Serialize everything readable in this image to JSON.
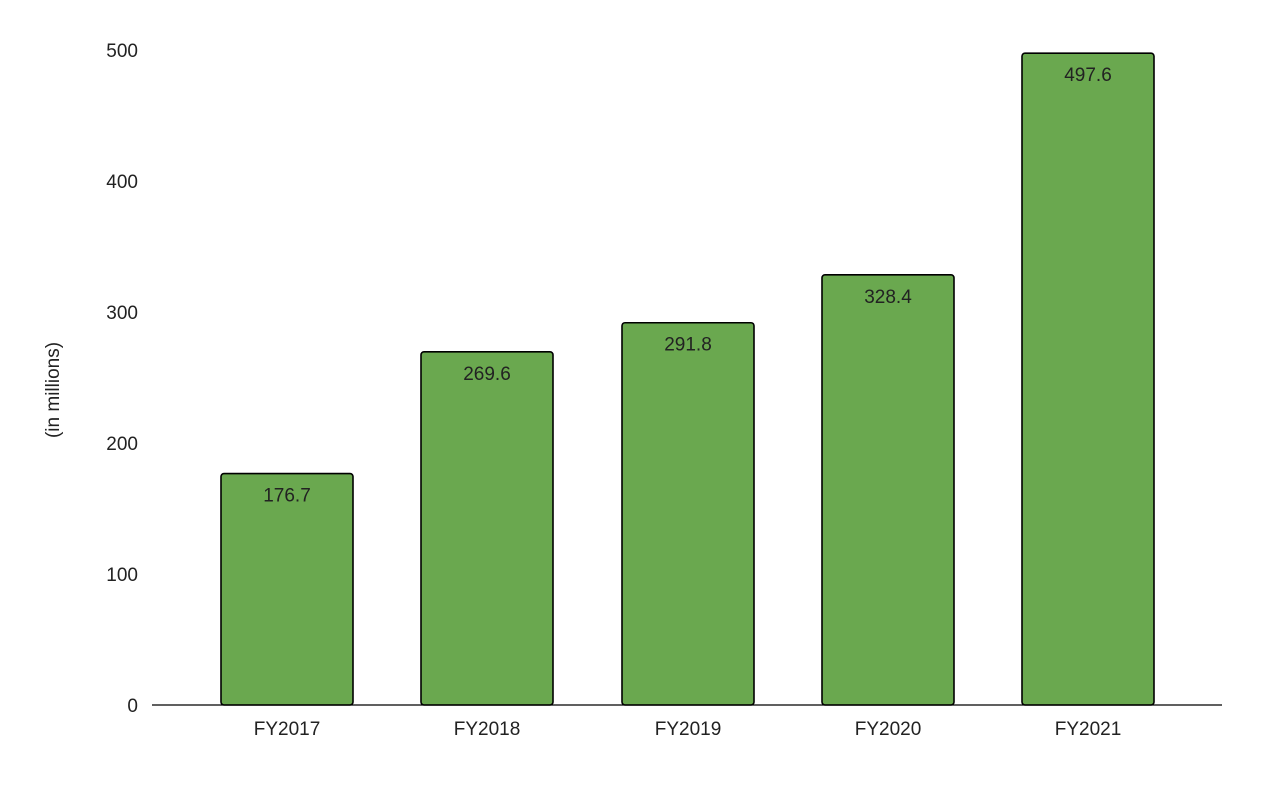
{
  "chart_data": {
    "type": "bar",
    "categories": [
      "FY2017",
      "FY2018",
      "FY2019",
      "FY2020",
      "FY2021"
    ],
    "values": [
      176.7,
      269.6,
      291.8,
      328.4,
      497.6
    ],
    "data_labels": [
      "176.7",
      "269.6",
      "291.8",
      "328.4",
      "497.6"
    ],
    "title": "",
    "xlabel": "",
    "ylabel": "(in millions)",
    "ylim": [
      0,
      500
    ],
    "yticks": [
      "0",
      "100",
      "200",
      "300",
      "400",
      "500"
    ],
    "grid": false,
    "legend": "none",
    "bar_color": "#6aa84f",
    "bar_edge_color": "#000000"
  }
}
